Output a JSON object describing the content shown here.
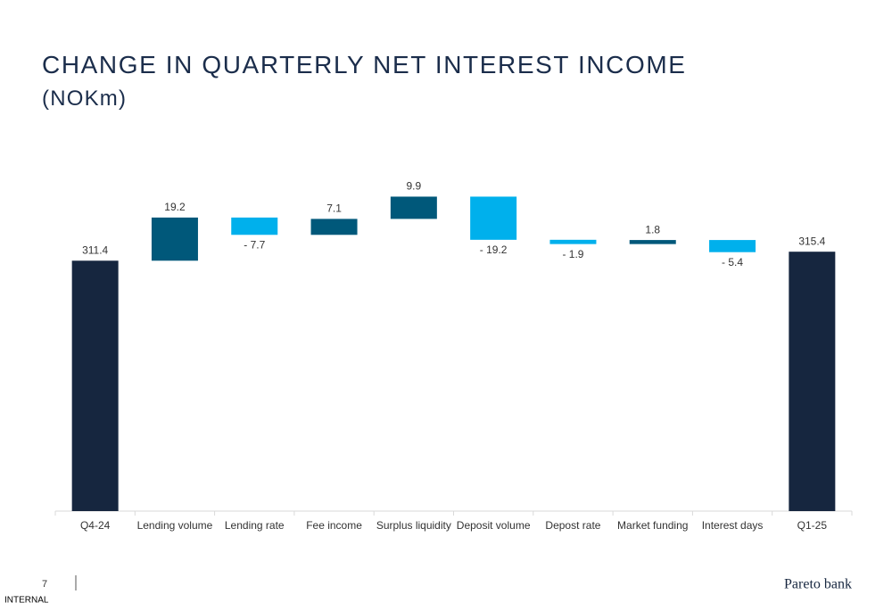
{
  "chart_data": {
    "type": "waterfall",
    "title": "CHANGE IN QUARTERLY NET INTEREST INCOME",
    "subtitle": "(NOKm)",
    "categories": [
      "Q4-24",
      "Lending volume",
      "Lending rate",
      "Fee income",
      "Surplus liquidity",
      "Deposit volume",
      "Depost rate",
      "Market funding",
      "Interest days",
      "Q1-25"
    ],
    "values": [
      311.4,
      19.2,
      -7.7,
      7.1,
      9.9,
      -19.2,
      -1.9,
      1.8,
      -5.4,
      315.4
    ],
    "value_labels": [
      "311.4",
      "19.2",
      "- 7.7",
      "7.1",
      "9.9",
      "- 19.2",
      "- 1.9",
      "1.8",
      "- 5.4",
      "315.4"
    ],
    "total_color": "#16263f",
    "increase_color": "#00587a",
    "decrease_color": "#00b0ec",
    "ylim": [
      200,
      350
    ]
  },
  "footer": {
    "page": "7",
    "classification": "INTERNAL",
    "brand": "Pareto bank"
  }
}
